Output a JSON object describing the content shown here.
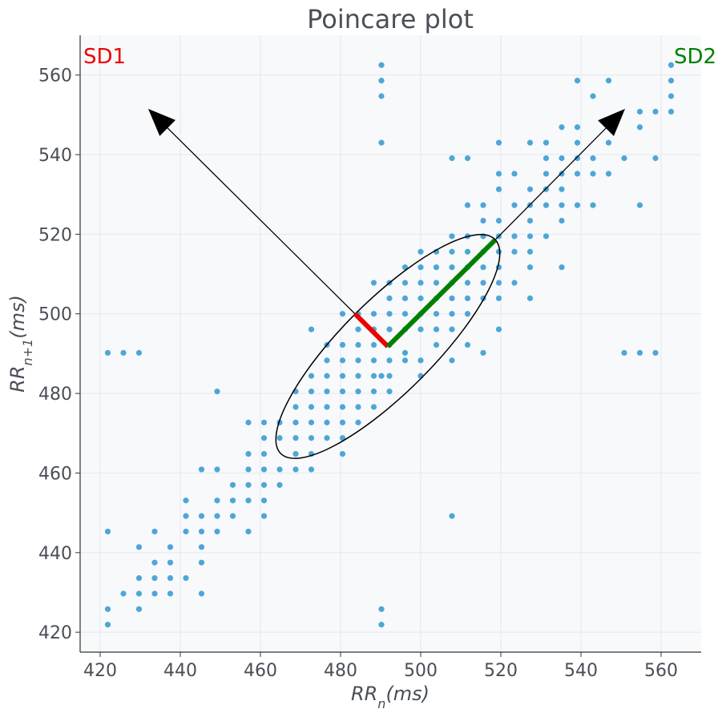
{
  "chart_data": {
    "type": "scatter",
    "title": "Poincare plot",
    "xlabel": "RR_n(ms)",
    "ylabel": "RR_n+1(ms)",
    "xlim": [
      415,
      570
    ],
    "ylim": [
      415,
      570
    ],
    "xticks": [
      420,
      440,
      460,
      480,
      500,
      520,
      540,
      560
    ],
    "yticks": [
      420,
      440,
      460,
      480,
      500,
      520,
      540,
      560
    ],
    "grid": true,
    "point_color": "#4ea6d6",
    "background": "#f7f9fb",
    "sd1_label": "SD1",
    "sd2_label": "SD2",
    "sd1_color": "#ee0000",
    "sd2_color": "#008000",
    "ellipse": {
      "center": [
        491.8,
        491.8
      ],
      "sd1": 11.5,
      "sd2": 37.8,
      "angle_deg": 45
    },
    "sd1_segment": [
      [
        491.8,
        491.8
      ],
      [
        483.6,
        500.0
      ]
    ],
    "sd2_segment": [
      [
        491.8,
        491.8
      ],
      [
        518.5,
        518.5
      ]
    ],
    "sd1_arrow": [
      [
        483.6,
        500.0
      ],
      [
        432.0,
        551.5
      ]
    ],
    "sd2_arrow": [
      [
        518.5,
        518.5
      ],
      [
        551.0,
        551.5
      ]
    ],
    "points": [
      [
        421.9,
        490.2
      ],
      [
        425.8,
        490.2
      ],
      [
        429.7,
        490.2
      ],
      [
        421.9,
        445.3
      ],
      [
        421.9,
        425.8
      ],
      [
        421.9,
        421.9
      ],
      [
        425.8,
        429.7
      ],
      [
        429.7,
        441.4
      ],
      [
        429.7,
        433.6
      ],
      [
        429.7,
        429.7
      ],
      [
        429.7,
        425.8
      ],
      [
        433.6,
        445.3
      ],
      [
        433.6,
        437.5
      ],
      [
        433.6,
        433.6
      ],
      [
        433.6,
        429.7
      ],
      [
        437.5,
        441.4
      ],
      [
        437.5,
        437.5
      ],
      [
        437.5,
        433.6
      ],
      [
        437.5,
        429.7
      ],
      [
        441.4,
        453.1
      ],
      [
        441.4,
        449.2
      ],
      [
        441.4,
        445.3
      ],
      [
        441.4,
        433.6
      ],
      [
        445.3,
        460.9
      ],
      [
        445.3,
        449.2
      ],
      [
        445.3,
        445.3
      ],
      [
        445.3,
        441.4
      ],
      [
        445.3,
        437.5
      ],
      [
        445.3,
        429.7
      ],
      [
        449.2,
        480.5
      ],
      [
        449.2,
        460.9
      ],
      [
        449.2,
        453.1
      ],
      [
        449.2,
        449.2
      ],
      [
        449.2,
        445.3
      ],
      [
        453.1,
        457.0
      ],
      [
        453.1,
        453.1
      ],
      [
        453.1,
        449.2
      ],
      [
        457.0,
        472.7
      ],
      [
        457.0,
        464.8
      ],
      [
        457.0,
        460.9
      ],
      [
        457.0,
        457.0
      ],
      [
        457.0,
        453.1
      ],
      [
        457.0,
        445.3
      ],
      [
        460.9,
        472.7
      ],
      [
        460.9,
        468.8
      ],
      [
        460.9,
        464.8
      ],
      [
        460.9,
        460.9
      ],
      [
        460.9,
        457.0
      ],
      [
        460.9,
        453.1
      ],
      [
        460.9,
        449.2
      ],
      [
        464.8,
        472.7
      ],
      [
        464.8,
        468.8
      ],
      [
        464.8,
        460.9
      ],
      [
        464.8,
        457.0
      ],
      [
        468.8,
        480.5
      ],
      [
        468.8,
        476.6
      ],
      [
        468.8,
        472.7
      ],
      [
        468.8,
        468.8
      ],
      [
        468.8,
        464.8
      ],
      [
        468.8,
        460.9
      ],
      [
        472.7,
        496.1
      ],
      [
        472.7,
        484.4
      ],
      [
        472.7,
        480.5
      ],
      [
        472.7,
        476.6
      ],
      [
        472.7,
        472.7
      ],
      [
        472.7,
        468.8
      ],
      [
        472.7,
        464.8
      ],
      [
        472.7,
        460.9
      ],
      [
        476.6,
        492.2
      ],
      [
        476.6,
        488.3
      ],
      [
        476.6,
        484.4
      ],
      [
        476.6,
        480.5
      ],
      [
        476.6,
        476.6
      ],
      [
        476.6,
        472.7
      ],
      [
        476.6,
        468.8
      ],
      [
        480.5,
        500.0
      ],
      [
        480.5,
        492.2
      ],
      [
        480.5,
        488.3
      ],
      [
        480.5,
        484.4
      ],
      [
        480.5,
        480.5
      ],
      [
        480.5,
        476.6
      ],
      [
        480.5,
        472.7
      ],
      [
        480.5,
        468.8
      ],
      [
        480.5,
        464.8
      ],
      [
        484.4,
        500.0
      ],
      [
        484.4,
        496.1
      ],
      [
        484.4,
        492.2
      ],
      [
        484.4,
        488.3
      ],
      [
        484.4,
        484.4
      ],
      [
        484.4,
        480.5
      ],
      [
        484.4,
        476.6
      ],
      [
        484.4,
        472.7
      ],
      [
        488.3,
        507.8
      ],
      [
        488.3,
        500.0
      ],
      [
        488.3,
        496.1
      ],
      [
        488.3,
        492.2
      ],
      [
        488.3,
        488.3
      ],
      [
        488.3,
        484.4
      ],
      [
        488.3,
        480.5
      ],
      [
        488.3,
        476.6
      ],
      [
        490.2,
        562.5
      ],
      [
        490.2,
        558.6
      ],
      [
        490.2,
        554.7
      ],
      [
        490.2,
        543.0
      ],
      [
        490.2,
        484.4
      ],
      [
        490.2,
        425.8
      ],
      [
        490.2,
        421.9
      ],
      [
        492.2,
        507.8
      ],
      [
        492.2,
        503.9
      ],
      [
        492.2,
        500.0
      ],
      [
        492.2,
        496.1
      ],
      [
        492.2,
        492.2
      ],
      [
        492.2,
        488.3
      ],
      [
        492.2,
        484.4
      ],
      [
        492.2,
        480.5
      ],
      [
        496.1,
        511.7
      ],
      [
        496.1,
        507.8
      ],
      [
        496.1,
        503.9
      ],
      [
        496.1,
        500.0
      ],
      [
        496.1,
        496.1
      ],
      [
        496.1,
        490.2
      ],
      [
        496.1,
        488.3
      ],
      [
        500.0,
        515.6
      ],
      [
        500.0,
        511.7
      ],
      [
        500.0,
        507.8
      ],
      [
        500.0,
        503.9
      ],
      [
        500.0,
        500.0
      ],
      [
        500.0,
        496.1
      ],
      [
        500.0,
        488.3
      ],
      [
        500.0,
        484.4
      ],
      [
        503.9,
        515.6
      ],
      [
        503.9,
        511.7
      ],
      [
        503.9,
        507.8
      ],
      [
        503.9,
        503.9
      ],
      [
        503.9,
        500.0
      ],
      [
        503.9,
        496.1
      ],
      [
        503.9,
        492.2
      ],
      [
        507.8,
        539.1
      ],
      [
        507.8,
        519.5
      ],
      [
        507.8,
        515.6
      ],
      [
        507.8,
        511.7
      ],
      [
        507.8,
        507.8
      ],
      [
        507.8,
        503.9
      ],
      [
        507.8,
        500.0
      ],
      [
        507.8,
        496.1
      ],
      [
        507.8,
        488.3
      ],
      [
        507.8,
        449.2
      ],
      [
        511.7,
        539.1
      ],
      [
        511.7,
        527.3
      ],
      [
        511.7,
        519.5
      ],
      [
        511.7,
        515.6
      ],
      [
        511.7,
        511.7
      ],
      [
        511.7,
        507.8
      ],
      [
        511.7,
        503.9
      ],
      [
        511.7,
        500.0
      ],
      [
        511.7,
        492.2
      ],
      [
        515.6,
        527.3
      ],
      [
        515.6,
        523.4
      ],
      [
        515.6,
        519.5
      ],
      [
        515.6,
        515.6
      ],
      [
        515.6,
        511.7
      ],
      [
        515.6,
        507.8
      ],
      [
        515.6,
        503.9
      ],
      [
        515.6,
        490.2
      ],
      [
        519.5,
        543.0
      ],
      [
        519.5,
        535.2
      ],
      [
        519.5,
        531.3
      ],
      [
        519.5,
        523.4
      ],
      [
        519.5,
        519.5
      ],
      [
        519.5,
        515.6
      ],
      [
        519.5,
        511.7
      ],
      [
        519.5,
        507.8
      ],
      [
        519.5,
        503.9
      ],
      [
        519.5,
        496.1
      ],
      [
        523.4,
        535.2
      ],
      [
        523.4,
        527.3
      ],
      [
        523.4,
        519.5
      ],
      [
        523.4,
        515.6
      ],
      [
        523.4,
        507.8
      ],
      [
        527.3,
        543.0
      ],
      [
        527.3,
        531.3
      ],
      [
        527.3,
        527.3
      ],
      [
        527.3,
        523.4
      ],
      [
        527.3,
        519.5
      ],
      [
        527.3,
        515.6
      ],
      [
        527.3,
        511.7
      ],
      [
        527.3,
        503.9
      ],
      [
        531.3,
        543.0
      ],
      [
        531.3,
        539.1
      ],
      [
        531.3,
        535.2
      ],
      [
        531.3,
        531.3
      ],
      [
        531.3,
        527.3
      ],
      [
        531.3,
        519.5
      ],
      [
        535.2,
        546.9
      ],
      [
        535.2,
        539.1
      ],
      [
        535.2,
        535.2
      ],
      [
        535.2,
        531.3
      ],
      [
        535.2,
        527.3
      ],
      [
        535.2,
        523.4
      ],
      [
        535.2,
        511.7
      ],
      [
        539.1,
        558.6
      ],
      [
        539.1,
        546.9
      ],
      [
        539.1,
        543.0
      ],
      [
        539.1,
        539.1
      ],
      [
        539.1,
        535.2
      ],
      [
        539.1,
        527.3
      ],
      [
        543.0,
        554.7
      ],
      [
        543.0,
        539.1
      ],
      [
        543.0,
        535.2
      ],
      [
        543.0,
        527.3
      ],
      [
        546.9,
        558.6
      ],
      [
        546.9,
        543.0
      ],
      [
        546.9,
        535.2
      ],
      [
        550.8,
        539.1
      ],
      [
        550.8,
        490.2
      ],
      [
        554.7,
        550.8
      ],
      [
        554.7,
        546.9
      ],
      [
        554.7,
        527.3
      ],
      [
        554.7,
        490.2
      ],
      [
        558.6,
        550.8
      ],
      [
        558.6,
        539.1
      ],
      [
        558.6,
        490.2
      ],
      [
        562.5,
        562.5
      ],
      [
        562.5,
        558.6
      ],
      [
        562.5,
        554.7
      ],
      [
        562.5,
        550.8
      ]
    ]
  }
}
